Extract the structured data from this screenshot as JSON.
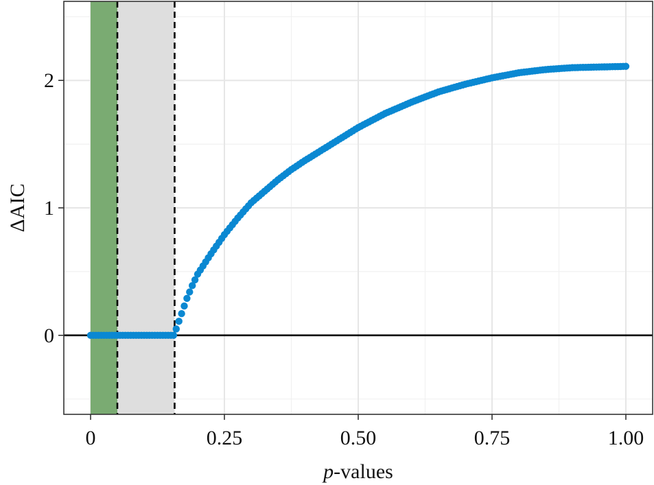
{
  "chart_data": {
    "type": "scatter",
    "title": "",
    "xlabel_italic": "p",
    "xlabel_rest": "-values",
    "ylabel": "ΔAIC",
    "xlim": [
      -0.05,
      1.05
    ],
    "ylim": [
      -0.62,
      2.62
    ],
    "x_ticks": [
      0,
      0.25,
      0.5,
      0.75,
      1.0
    ],
    "x_tick_labels": [
      "0",
      "0.25",
      "0.50",
      "0.75",
      "1.00"
    ],
    "y_ticks": [
      0,
      1,
      2
    ],
    "y_tick_labels": [
      "0",
      "1",
      "2"
    ],
    "grid": true,
    "reference_line_y": 0,
    "shaded_regions": [
      {
        "x0": 0,
        "x1": 0.05,
        "color": "#7aab72"
      },
      {
        "x0": 0.05,
        "x1": 0.157,
        "color": "#dedede"
      }
    ],
    "dashed_lines_x": [
      0.05,
      0.157
    ],
    "point_color": "#0a88d2",
    "curve": {
      "zero_until": 0.157,
      "points": [
        [
          0.157,
          0.0
        ],
        [
          0.16,
          0.05
        ],
        [
          0.17,
          0.17
        ],
        [
          0.18,
          0.29
        ],
        [
          0.19,
          0.39
        ],
        [
          0.2,
          0.48
        ],
        [
          0.225,
          0.64
        ],
        [
          0.25,
          0.79
        ],
        [
          0.275,
          0.92
        ],
        [
          0.3,
          1.04
        ],
        [
          0.325,
          1.13
        ],
        [
          0.35,
          1.22
        ],
        [
          0.375,
          1.3
        ],
        [
          0.4,
          1.37
        ],
        [
          0.45,
          1.5
        ],
        [
          0.5,
          1.63
        ],
        [
          0.55,
          1.74
        ],
        [
          0.6,
          1.83
        ],
        [
          0.65,
          1.91
        ],
        [
          0.7,
          1.97
        ],
        [
          0.75,
          2.02
        ],
        [
          0.8,
          2.06
        ],
        [
          0.85,
          2.085
        ],
        [
          0.9,
          2.1
        ],
        [
          0.95,
          2.105
        ],
        [
          1.0,
          2.11
        ]
      ]
    }
  }
}
